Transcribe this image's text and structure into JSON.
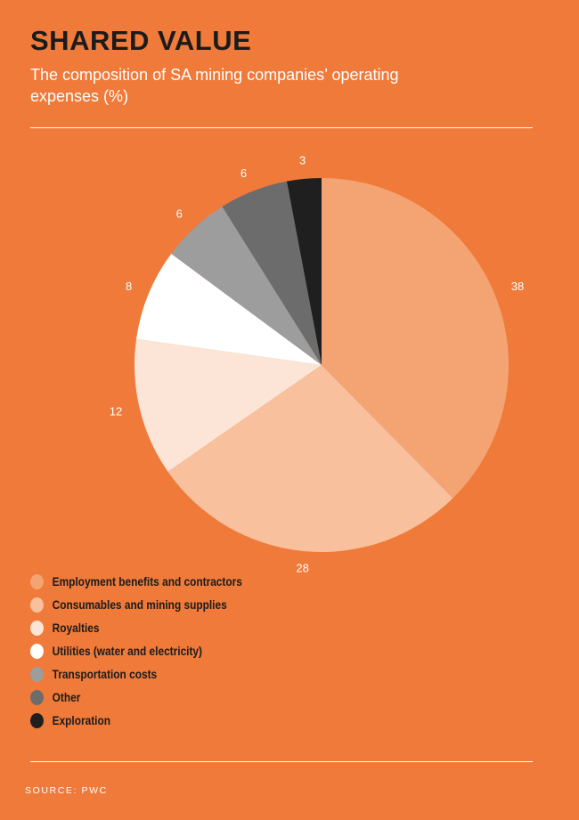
{
  "header": {
    "title": "SHARED VALUE",
    "subtitle": "The composition of SA mining companies’ operating expenses (%)"
  },
  "chart_data": {
    "type": "pie",
    "title": "SHARED VALUE",
    "subtitle": "The composition of SA mining companies’ operating expenses (%)",
    "unit": "%",
    "slices": [
      {
        "label": "Employment benefits and contractors",
        "value": 38,
        "color": "#F4A473"
      },
      {
        "label": "Consumables and mining supplies",
        "value": 28,
        "color": "#F8C09C"
      },
      {
        "label": "Royalties",
        "value": 12,
        "color": "#FCE4D6"
      },
      {
        "label": "Utilities (water and electricity)",
        "value": 8,
        "color": "#FFFFFF"
      },
      {
        "label": "Transportation costs",
        "value": 6,
        "color": "#9D9D9D"
      },
      {
        "label": "Other",
        "value": 6,
        "color": "#6C6C6C"
      },
      {
        "label": "Exploration",
        "value": 3,
        "color": "#1F1F1F"
      }
    ],
    "start": "12 o'clock",
    "direction": "clockwise",
    "legend_position": "bottom-left"
  },
  "footer": {
    "source": "SOURCE: PWC"
  }
}
